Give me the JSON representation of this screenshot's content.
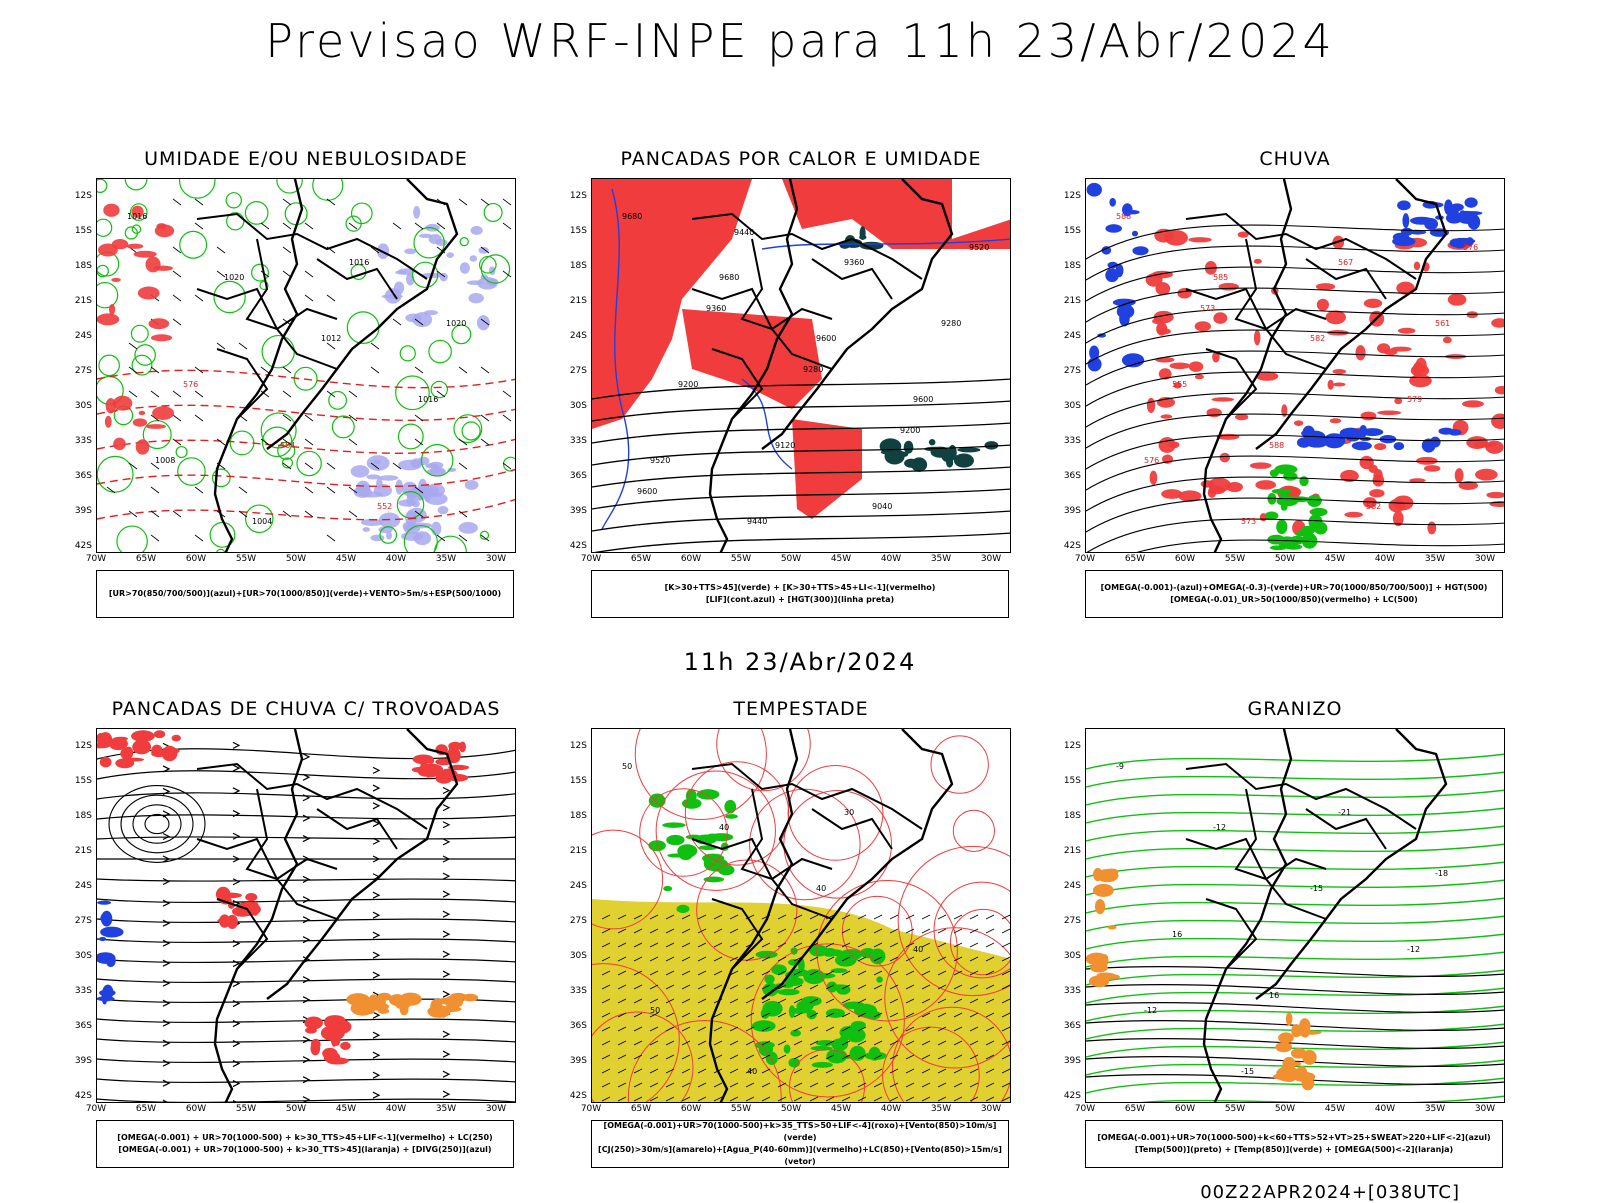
{
  "title": "Previsao WRF-INPE  para 11h 23/Abr/2024",
  "mid_title": "11h 23/Abr/2024",
  "footer": "00Z22APR2024+[038UTC]",
  "lat_labels": [
    "12S",
    "15S",
    "18S",
    "21S",
    "24S",
    "27S",
    "30S",
    "33S",
    "36S",
    "39S",
    "42S"
  ],
  "lon_labels": [
    "70W",
    "65W",
    "60W",
    "55W",
    "50W",
    "45W",
    "40W",
    "35W",
    "30W"
  ],
  "colors": {
    "red": "#f03c3c",
    "blue": "#2040e0",
    "green": "#10c010",
    "lavender": "#a8a8f0",
    "yellow": "#e0d030",
    "orange": "#f09030",
    "darkteal": "#104040",
    "black": "#000000"
  },
  "panels": [
    {
      "id": "umidade",
      "title": "UMIDADE E/OU NEBULOSIDADE",
      "legend": [
        "[UR>70(850/700/500)](azul)+[UR>70(1000/850)](verde)+VENTO>5m/s+ESP(500/1000)"
      ],
      "contour_labels": [
        "1016",
        "1020",
        "1012",
        "1016",
        "1008",
        "1004",
        "1016",
        "1020",
        "576",
        "564",
        "552"
      ]
    },
    {
      "id": "pancadas_calor",
      "title": "PANCADAS POR CALOR E UMIDADE",
      "legend": [
        "[K>30+TTS>45](verde) + [K>30+TTS>45+LI<-1](vermelho)",
        "[LIF](cont.azul) + [HGT(300)](linha preta)"
      ],
      "contour_labels": [
        "9680",
        "9680",
        "9600",
        "9600",
        "9520",
        "9440",
        "9360",
        "9280",
        "9200",
        "9120",
        "9040",
        "9520",
        "9360",
        "9280",
        "9200",
        "9600",
        "9440"
      ]
    },
    {
      "id": "chuva",
      "title": "CHUVA",
      "legend": [
        "[OMEGA(-0.001)-(azul)+OMEGA(-0.3)-(verde)+UR>70(1000/850/700/500)] + HGT(500)",
        "[OMEGA(-0.01)_UR>50(1000/850)(vermelho) + LC(500)"
      ],
      "contour_labels": [
        "588",
        "585",
        "582",
        "579",
        "576",
        "573",
        "567",
        "561",
        "555",
        "588",
        "582",
        "576",
        "573"
      ]
    },
    {
      "id": "trovoadas",
      "title": "PANCADAS DE CHUVA C/ TROVOADAS",
      "legend": [
        "[OMEGA(-0.001) + UR>70(1000-500) + k>30_TTS>45+LIF<-1](vermelho) + LC(250)",
        "[OMEGA(-0.001) + UR>70(1000-500) + k>30_TTS>45](laranja) + [DIVG(250)](azul)"
      ],
      "contour_labels": []
    },
    {
      "id": "tempestade",
      "title": "TEMPESTADE",
      "legend": [
        "[OMEGA(-0.001)+UR>70(1000-500)+k>35_TTS>50+LIF<-4](roxo)+[Vento(850)>10m/s](verde)",
        "[CJ(250)>30m/s](amarelo)+[Agua_P(40-60mm)](vermelho)+LC(850)+[Vento(850)>15m/s](vetor)"
      ],
      "contour_labels": [
        "50",
        "40",
        "40",
        "40",
        "50",
        "40",
        "30"
      ]
    },
    {
      "id": "granizo",
      "title": "GRANIZO",
      "legend": [
        "[OMEGA(-0.001)+UR>70(1000-500)+k<60+TTS>52+VT>25+SWEAT>220+LIF<-2](azul)",
        "[Temp(500)](preto) + [Temp(850)](verde) + [OMEGA(500)<-2](laranja)"
      ],
      "contour_labels": [
        "-9",
        "-12",
        "-15",
        "-12",
        "-12",
        "-15",
        "-21",
        "-18",
        "16",
        "16"
      ]
    }
  ]
}
